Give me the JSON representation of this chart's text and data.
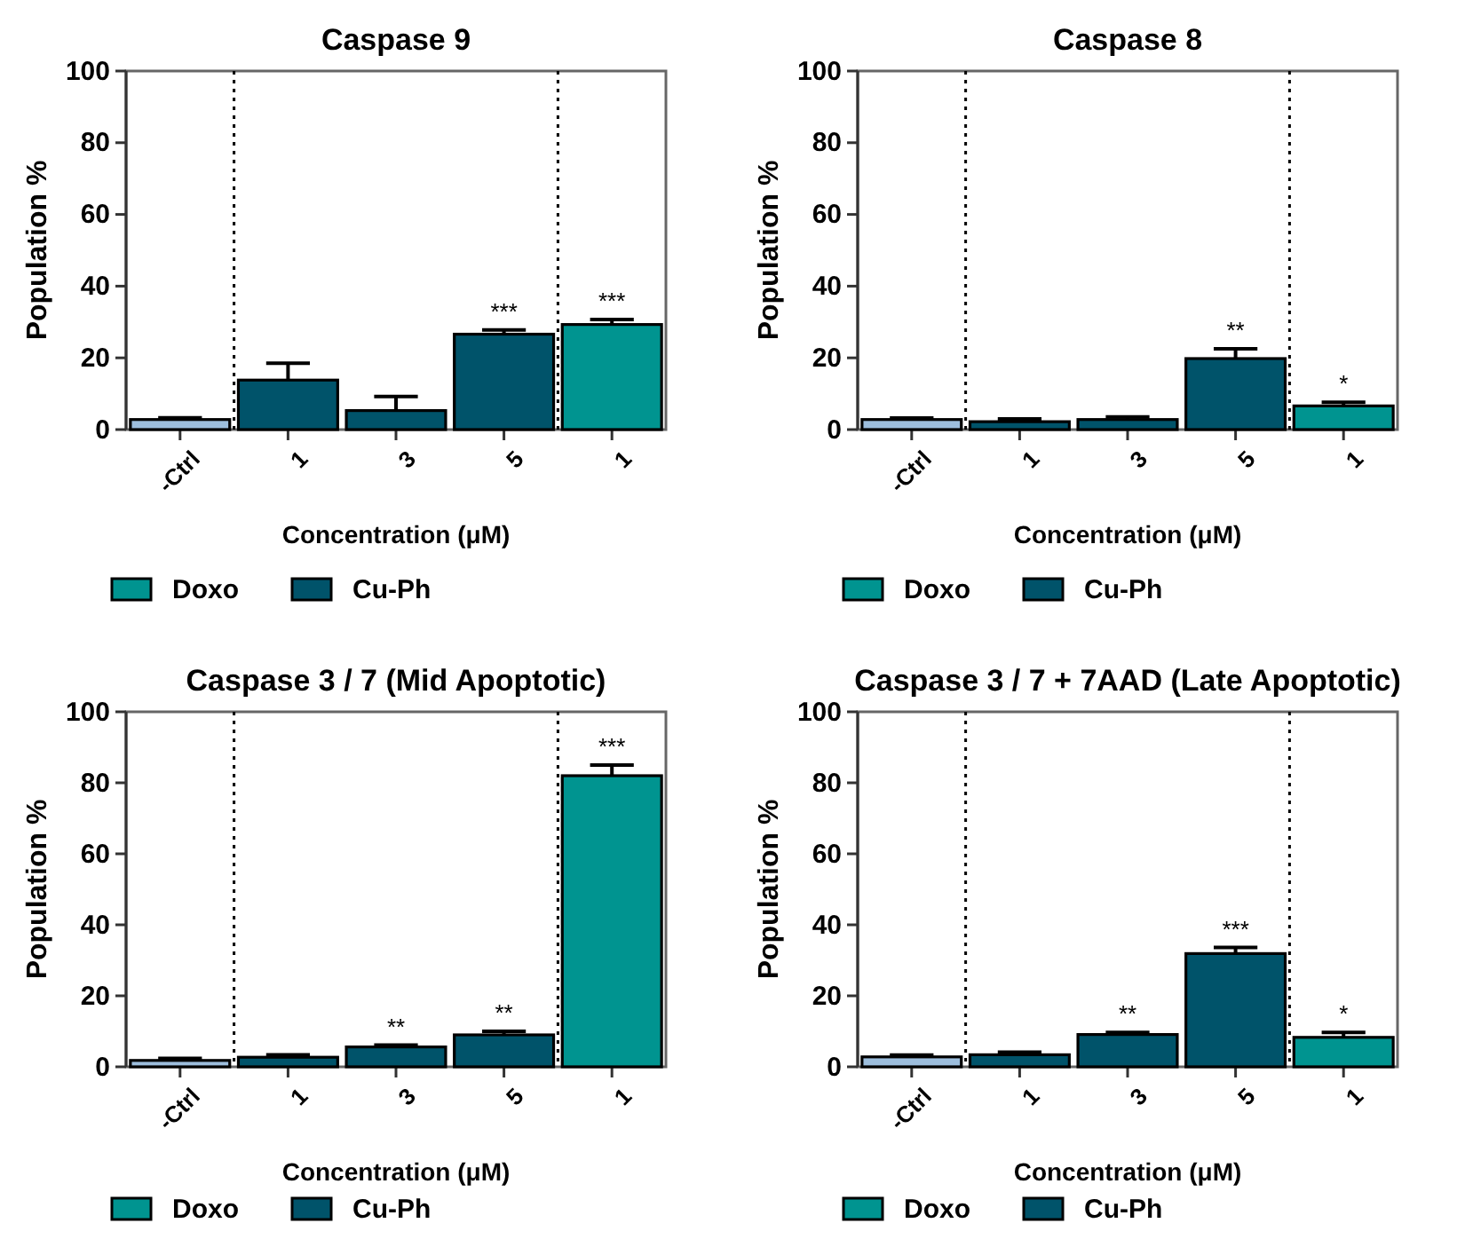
{
  "chart_data": [
    {
      "type": "bar",
      "title": "Caspase 9",
      "xlabel": "Concentration (μM)",
      "ylabel": "Population %",
      "categories": [
        "-Ctrl",
        "1",
        "3",
        "5",
        "1"
      ],
      "ylim": [
        0,
        100
      ],
      "yticks": [
        0,
        20,
        40,
        60,
        80,
        100
      ],
      "legend": "bottom",
      "grid": false,
      "series": [
        {
          "color": "#9dbedd",
          "values": [
            2.8,
            null,
            null,
            null,
            null
          ],
          "errors": [
            [
              2.8,
              3.3
            ],
            null,
            null,
            null,
            null
          ]
        },
        {
          "name": "Doxo",
          "color": "#009490",
          "values": [
            null,
            null,
            null,
            null,
            29.3
          ],
          "errors": [
            null,
            null,
            null,
            null,
            [
              29.3,
              30.7
            ]
          ]
        },
        {
          "name": "Cu-Ph",
          "color": "#00536a",
          "values": [
            null,
            13.8,
            5.3,
            26.6,
            null
          ],
          "errors": [
            null,
            [
              13.8,
              18.5
            ],
            [
              5.3,
              9.2
            ],
            [
              26.6,
              27.8
            ],
            null
          ]
        }
      ],
      "annotations": [
        {
          "text": "***",
          "x": "5",
          "y": 27.8
        },
        {
          "text": "***",
          "y": 30.7
        }
      ]
    },
    {
      "type": "bar",
      "title": "Caspase 8",
      "xlabel": "Concentration (μM)",
      "ylabel": "Population %",
      "categories": [
        "-Ctrl",
        "1",
        "3",
        "5",
        "1"
      ],
      "ylim": [
        0,
        100
      ],
      "yticks": [
        0,
        20,
        40,
        60,
        80,
        100
      ],
      "legend": "bottom",
      "grid": false,
      "series": [
        {
          "color": "#9dbedd",
          "values": [
            2.8,
            null,
            null,
            null,
            null
          ],
          "errors": [
            [
              2.8,
              3.2
            ],
            null,
            null,
            null,
            null
          ]
        },
        {
          "name": "Doxo",
          "color": "#009490",
          "values": [
            null,
            null,
            null,
            null,
            6.6
          ],
          "errors": [
            null,
            null,
            null,
            null,
            [
              6.6,
              7.6
            ]
          ]
        },
        {
          "name": "Cu-Ph",
          "color": "#00536a",
          "values": [
            null,
            2.2,
            2.8,
            19.8,
            null
          ],
          "errors": [
            null,
            [
              2.2,
              3.0
            ],
            [
              2.8,
              3.5
            ],
            [
              19.8,
              22.5
            ],
            null
          ]
        }
      ],
      "annotations": [
        {
          "text": "**",
          "x": "5",
          "y": 22.5
        },
        {
          "text": "*",
          "y": 7.6
        }
      ]
    },
    {
      "type": "bar",
      "title": "Caspase 3 / 7 (Mid Apoptotic)",
      "xlabel": "Concentration (μM)",
      "ylabel": "Population %",
      "categories": [
        "-Ctrl",
        "1",
        "3",
        "5",
        "1"
      ],
      "ylim": [
        0,
        100
      ],
      "yticks": [
        0,
        20,
        40,
        60,
        80,
        100
      ],
      "legend": "bottom",
      "grid": false,
      "series": [
        {
          "color": "#9dbedd",
          "values": [
            1.8,
            null,
            null,
            null,
            null
          ],
          "errors": [
            [
              1.8,
              2.4
            ],
            null,
            null,
            null,
            null
          ]
        },
        {
          "name": "Doxo",
          "color": "#009490",
          "values": [
            null,
            null,
            null,
            null,
            82.0
          ],
          "errors": [
            null,
            null,
            null,
            null,
            [
              82.0,
              85.0
            ]
          ]
        },
        {
          "name": "Cu-Ph",
          "color": "#00536a",
          "values": [
            null,
            2.7,
            5.6,
            9.0,
            null
          ],
          "errors": [
            null,
            [
              2.7,
              3.4
            ],
            [
              5.6,
              6.1
            ],
            [
              9.0,
              10.0
            ],
            null
          ]
        }
      ],
      "annotations": [
        {
          "text": "**",
          "x": "3",
          "y": 6.1
        },
        {
          "text": "**",
          "x": "5",
          "y": 10.0
        },
        {
          "text": "***",
          "y": 85.0
        }
      ]
    },
    {
      "type": "bar",
      "title": "Caspase 3 / 7 + 7AAD (Late Apoptotic)",
      "xlabel": "Concentration (μM)",
      "ylabel": "Population %",
      "categories": [
        "-Ctrl",
        "1",
        "3",
        "5",
        "1"
      ],
      "ylim": [
        0,
        100
      ],
      "yticks": [
        0,
        20,
        40,
        60,
        80,
        100
      ],
      "legend": "bottom",
      "grid": false,
      "series": [
        {
          "color": "#9dbedd",
          "values": [
            2.8,
            null,
            null,
            null,
            null
          ],
          "errors": [
            [
              2.8,
              3.3
            ],
            null,
            null,
            null,
            null
          ]
        },
        {
          "name": "Doxo",
          "color": "#009490",
          "values": [
            null,
            null,
            null,
            null,
            8.3
          ],
          "errors": [
            null,
            null,
            null,
            null,
            [
              8.3,
              9.7
            ]
          ]
        },
        {
          "name": "Cu-Ph",
          "color": "#00536a",
          "values": [
            null,
            3.4,
            9.1,
            31.9,
            null
          ],
          "errors": [
            null,
            [
              3.4,
              4.1
            ],
            [
              9.1,
              9.7
            ],
            [
              31.9,
              33.6
            ],
            null
          ]
        }
      ],
      "annotations": [
        {
          "text": "**",
          "x": "3",
          "y": 9.7
        },
        {
          "text": "***",
          "x": "5",
          "y": 33.6
        },
        {
          "text": "*",
          "y": 9.7
        }
      ]
    }
  ]
}
